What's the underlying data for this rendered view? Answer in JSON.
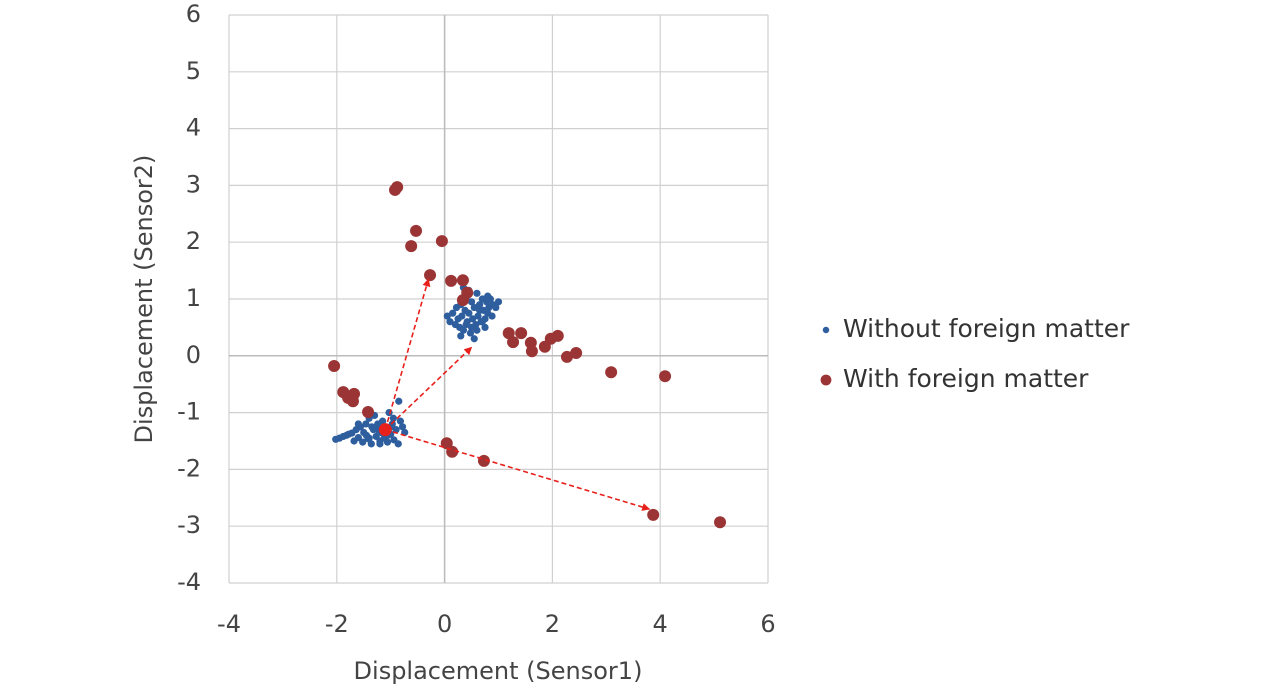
{
  "chart_data": {
    "type": "scatter",
    "xlabel": "Displacement (Sensor1)",
    "ylabel": "Displacement (Sensor2)",
    "xlim": [
      -4,
      6
    ],
    "xticks": [
      -4,
      -2,
      0,
      2,
      4,
      6
    ],
    "ylim": [
      -4,
      6
    ],
    "yticks": [
      -4,
      -3,
      -2,
      -1,
      0,
      1,
      2,
      3,
      4,
      5,
      6
    ],
    "grid": true,
    "legend": "right",
    "series": [
      {
        "name": "Without foreign matter",
        "color": "#2e5e9e",
        "x": [
          -2.02,
          -1.95,
          -1.88,
          -1.82,
          -1.78,
          -1.72,
          -1.68,
          -1.64,
          -1.6,
          -1.56,
          -1.52,
          -1.5,
          -1.46,
          -1.42,
          -1.4,
          -1.36,
          -1.32,
          -1.3,
          -1.27,
          -1.24,
          -1.2,
          -1.18,
          -1.15,
          -1.12,
          -1.1,
          -1.06,
          -1.03,
          -1.0,
          -0.97,
          -0.94,
          -0.9,
          -0.86,
          -0.82,
          -0.78,
          -0.74,
          -1.45,
          -1.35,
          -1.25,
          -1.05,
          -0.95,
          -1.6,
          -1.4,
          -1.2,
          -1.0,
          -0.85,
          0.05,
          0.1,
          0.15,
          0.2,
          0.22,
          0.25,
          0.28,
          0.3,
          0.32,
          0.35,
          0.38,
          0.4,
          0.42,
          0.45,
          0.48,
          0.5,
          0.52,
          0.55,
          0.58,
          0.6,
          0.62,
          0.65,
          0.68,
          0.7,
          0.72,
          0.75,
          0.78,
          0.8,
          0.82,
          0.85,
          0.88,
          0.9,
          0.95,
          1.0,
          0.3,
          0.4,
          0.5,
          0.6,
          0.7,
          0.8,
          0.45,
          0.55,
          0.65,
          0.35,
          0.75
        ],
        "values": [
          -1.47,
          -1.45,
          -1.42,
          -1.4,
          -1.38,
          -1.36,
          -1.5,
          -1.3,
          -1.44,
          -1.25,
          -1.52,
          -1.35,
          -1.2,
          -1.46,
          -1.1,
          -1.55,
          -1.3,
          -1.05,
          -1.42,
          -1.2,
          -1.5,
          -1.35,
          -1.15,
          -1.45,
          -1.28,
          -1.52,
          -1.0,
          -1.38,
          -1.2,
          -1.48,
          -1.3,
          -1.55,
          -1.15,
          -1.25,
          -1.35,
          -1.4,
          -1.25,
          -1.3,
          -1.4,
          -1.1,
          -1.2,
          -1.45,
          -1.55,
          -1.25,
          -0.8,
          0.7,
          0.6,
          0.75,
          0.55,
          0.85,
          0.65,
          0.5,
          0.9,
          0.7,
          0.45,
          0.8,
          1.0,
          0.6,
          0.75,
          0.4,
          0.95,
          0.65,
          0.85,
          0.55,
          1.1,
          0.7,
          0.9,
          0.6,
          1.0,
          0.8,
          0.65,
          0.95,
          0.75,
          0.85,
          1.0,
          0.7,
          0.9,
          0.85,
          0.95,
          0.35,
          0.55,
          0.5,
          0.45,
          0.6,
          1.05,
          1.15,
          0.3,
          0.8,
          1.2,
          0.5
        ]
      },
      {
        "name": "With foreign matter",
        "color": "#9b3535",
        "x": [
          -0.92,
          -0.88,
          -0.53,
          -0.62,
          -0.05,
          -0.27,
          0.12,
          0.34,
          0.42,
          0.34,
          1.19,
          1.42,
          1.27,
          1.6,
          1.86,
          1.97,
          2.1,
          1.62,
          2.27,
          2.44,
          3.09,
          4.09,
          -2.05,
          -1.88,
          -1.79,
          -1.68,
          -1.7,
          -1.42,
          0.04,
          0.14,
          0.73,
          3.87,
          5.11
        ],
        "values": [
          2.92,
          2.97,
          2.2,
          1.93,
          2.02,
          1.42,
          1.32,
          1.33,
          1.11,
          0.98,
          0.4,
          0.4,
          0.24,
          0.23,
          0.16,
          0.3,
          0.35,
          0.08,
          -0.02,
          0.05,
          -0.29,
          -0.36,
          -0.18,
          -0.64,
          -0.74,
          -0.67,
          -0.8,
          -0.99,
          -1.54,
          -1.69,
          -1.85,
          -2.8,
          -2.93
        ]
      }
    ],
    "arrow_color": "#e8201c",
    "origin": [
      -1.1,
      -1.3
    ],
    "targets": [
      [
        -0.3,
        1.35
      ],
      [
        0.5,
        0.15
      ],
      [
        3.8,
        -2.7
      ]
    ]
  }
}
